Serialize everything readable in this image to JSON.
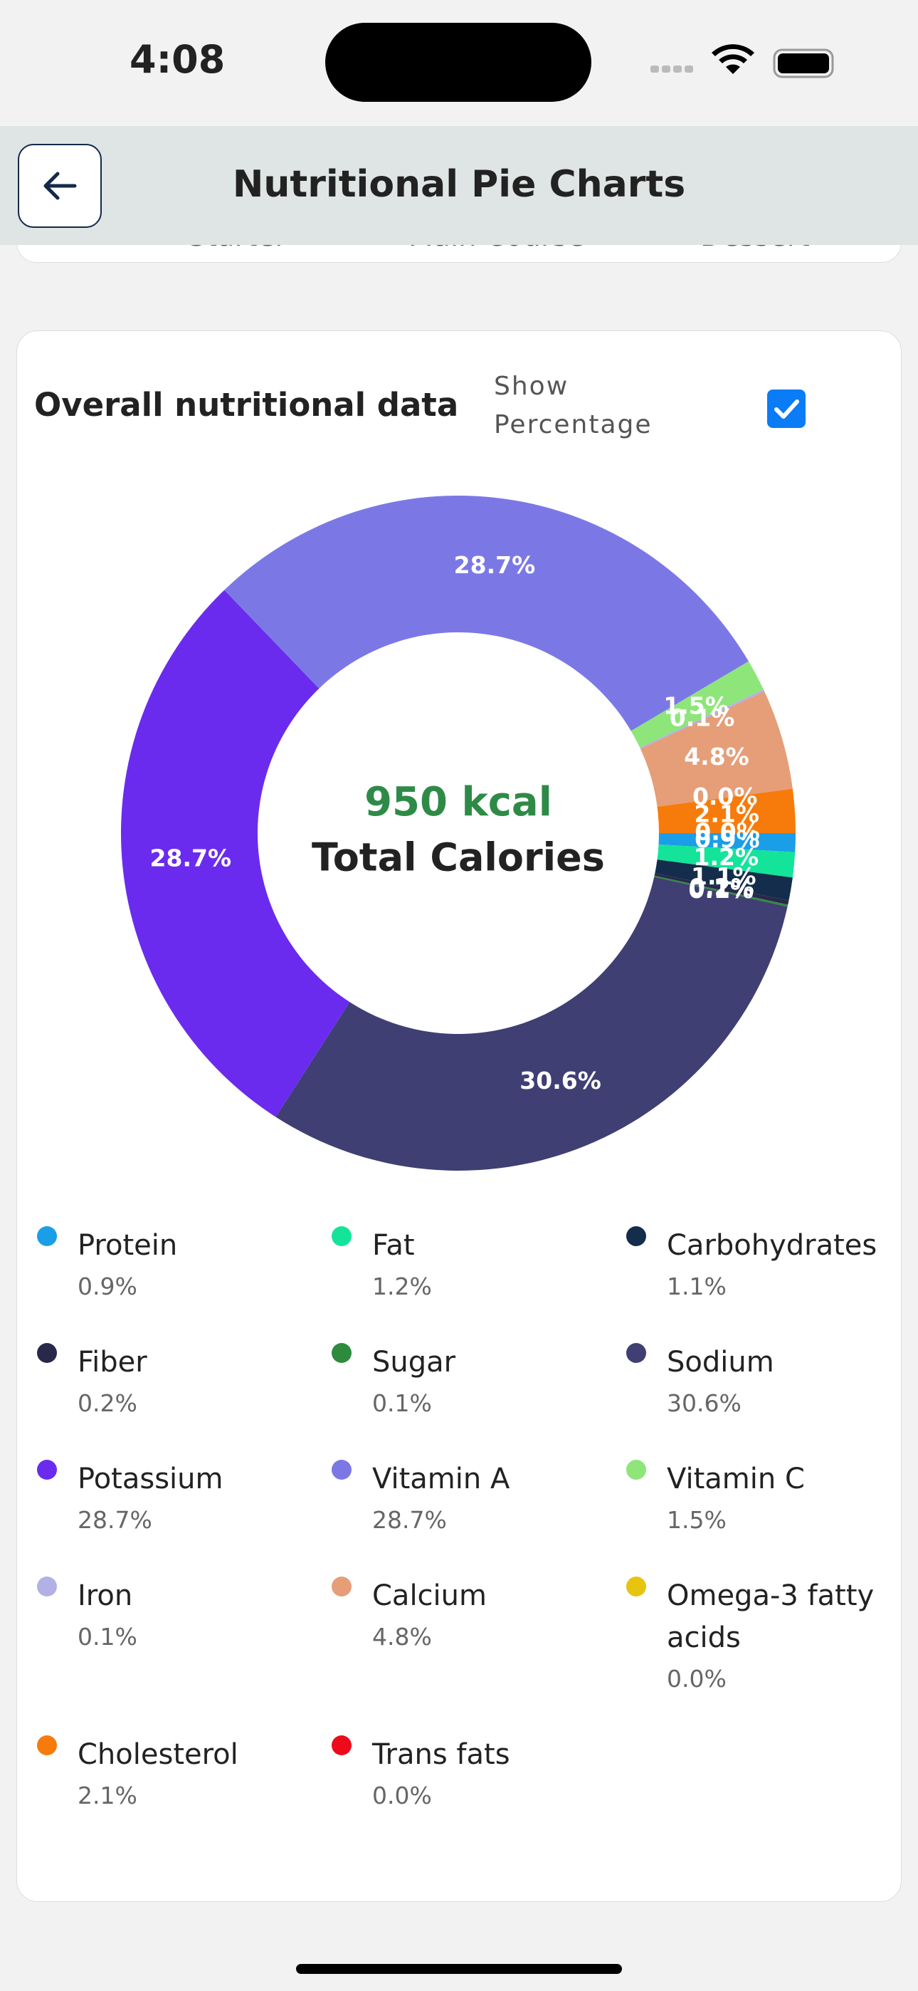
{
  "status_bar": {
    "time": "4:08"
  },
  "header": {
    "title": "Nutritional Pie Charts"
  },
  "tabs": [
    "Starter",
    "Main Course",
    "Dessert"
  ],
  "card": {
    "title": "Overall nutritional data",
    "toggle_label": "Show Percentage",
    "toggle_checked": true
  },
  "chart_data": {
    "type": "pie",
    "donut": true,
    "center_value": "950 kcal",
    "center_label": "Total Calories",
    "categories": [
      "Protein",
      "Fat",
      "Carbohydrates",
      "Fiber",
      "Sugar",
      "Sodium",
      "Potassium",
      "Vitamin A",
      "Vitamin C",
      "Iron",
      "Calcium",
      "Omega-3 fatty acids",
      "Cholesterol",
      "Trans fats"
    ],
    "values": [
      0.9,
      1.2,
      1.1,
      0.2,
      0.1,
      30.6,
      28.7,
      28.7,
      1.5,
      0.1,
      4.8,
      0.0,
      2.1,
      0.0
    ],
    "value_labels": [
      "0.9%",
      "1.2%",
      "1.1%",
      "0.2%",
      "0.1%",
      "30.6%",
      "28.7%",
      "28.7%",
      "1.5%",
      "0.1%",
      "4.8%",
      "0.0%",
      "2.1%",
      "0.0%"
    ],
    "colors": [
      "#1a9ee8",
      "#13e49a",
      "#142d4c",
      "#28284a",
      "#2e8b3e",
      "#3f3f73",
      "#6a2bef",
      "#7b78e6",
      "#8ee57a",
      "#b3b0e6",
      "#e59e78",
      "#e6c410",
      "#f77b0a",
      "#ee0a1a"
    ]
  }
}
